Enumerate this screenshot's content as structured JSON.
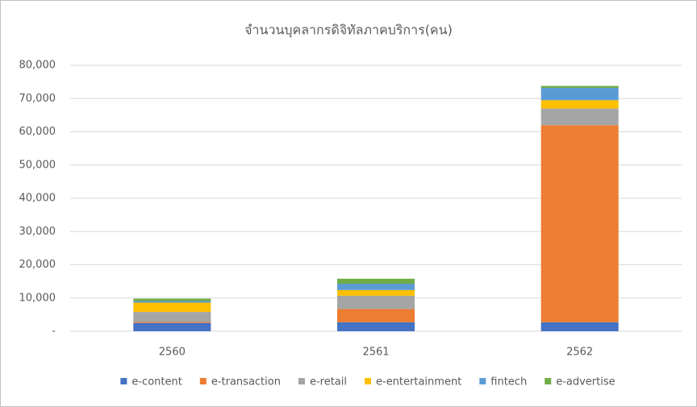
{
  "chart_data": {
    "type": "stacked_bar",
    "title": "จำนวนบุคลากรดิจิทัลภาคบริการ(คน)",
    "categories": [
      "2560",
      "2561",
      "2562"
    ],
    "series": [
      {
        "name": "e-content",
        "color": "#4472c4",
        "values": [
          2500,
          2700,
          2700
        ]
      },
      {
        "name": "e-transaction",
        "color": "#ed7d31",
        "values": [
          300,
          4000,
          59300
        ]
      },
      {
        "name": "e-retail",
        "color": "#a5a5a5",
        "values": [
          3000,
          4000,
          5000
        ]
      },
      {
        "name": "e-entertainment",
        "color": "#ffc000",
        "values": [
          2800,
          1700,
          2500
        ]
      },
      {
        "name": "fintech",
        "color": "#5b9bd5",
        "values": [
          500,
          1900,
          3700
        ]
      },
      {
        "name": "e-advertise",
        "color": "#70ad47",
        "values": [
          700,
          1500,
          600
        ]
      }
    ],
    "ylim": [
      0,
      80000
    ],
    "yticks": [
      {
        "value": 0,
        "label": "-"
      },
      {
        "value": 10000,
        "label": "10,000"
      },
      {
        "value": 20000,
        "label": "20,000"
      },
      {
        "value": 30000,
        "label": "30,000"
      },
      {
        "value": 40000,
        "label": "40,000"
      },
      {
        "value": 50000,
        "label": "50,000"
      },
      {
        "value": 60000,
        "label": "60,000"
      },
      {
        "value": 70000,
        "label": "70,000"
      },
      {
        "value": 80000,
        "label": "80,000"
      }
    ],
    "grid": true,
    "legend": "bottom"
  }
}
